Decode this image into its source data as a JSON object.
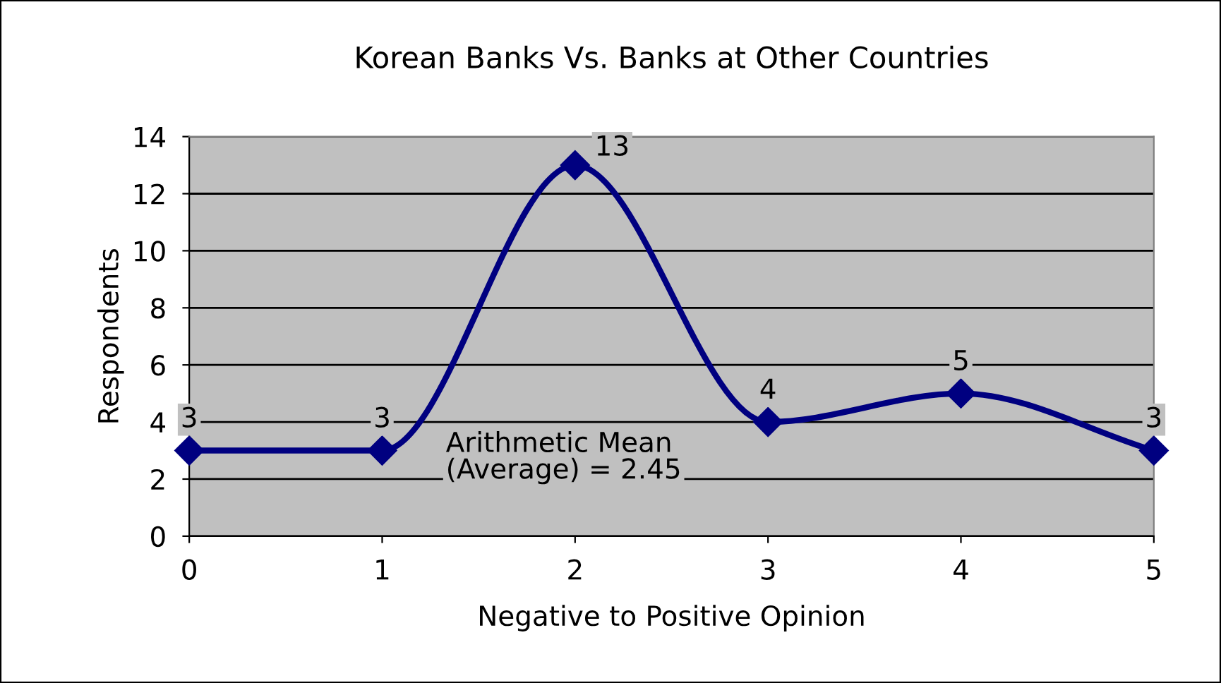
{
  "chart_data": {
    "type": "line",
    "title": "Korean Banks Vs. Banks at Other Countries",
    "xlabel": "Negative to Positive Opinion",
    "ylabel": "Respondents",
    "x": [
      0,
      1,
      2,
      3,
      4,
      5
    ],
    "series": [
      {
        "color": "#000080",
        "values": [
          3,
          3,
          13,
          4,
          5,
          3
        ]
      }
    ],
    "xlim": [
      0,
      5
    ],
    "xticks": [
      0,
      1,
      2,
      3,
      4,
      5
    ],
    "ylim": [
      0,
      14
    ],
    "yticks": [
      0,
      2,
      4,
      6,
      8,
      10,
      12,
      14
    ],
    "grid": "y",
    "marker": "diamond",
    "line_style": "solid",
    "data_labels": true,
    "legend": false,
    "annotations": [
      "Arithmetic Mean\n(Average) = 2.45"
    ]
  }
}
